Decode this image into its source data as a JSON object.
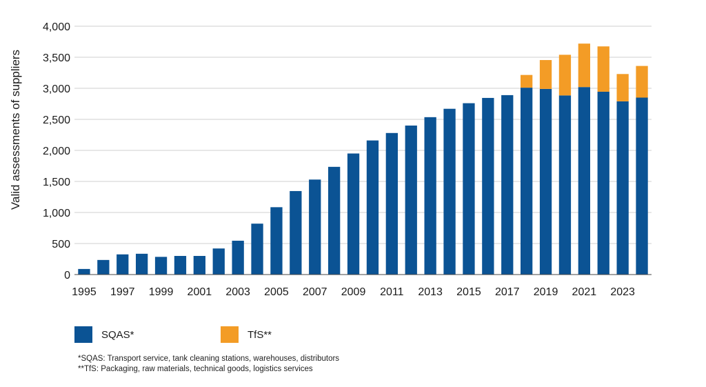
{
  "chart_data": {
    "type": "bar",
    "stacked": true,
    "title": "",
    "xlabel": "",
    "ylabel": "Valid assessments of suppliers",
    "ylim": [
      0,
      4000
    ],
    "yticks": [
      0,
      500,
      1000,
      1500,
      2000,
      2500,
      3000,
      3500,
      4000
    ],
    "ytick_labels": [
      "0",
      "500",
      "1,000",
      "1,500",
      "2,000",
      "2,500",
      "3,000",
      "3,500",
      "4,000"
    ],
    "grid": "horizontal",
    "categories": [
      "1995",
      "1996",
      "1997",
      "1998",
      "1999",
      "2000",
      "2001",
      "2002",
      "2003",
      "2004",
      "2005",
      "2006",
      "2007",
      "2008",
      "2009",
      "2010",
      "2011",
      "2012",
      "2013",
      "2014",
      "2015",
      "2016",
      "2017",
      "2018",
      "2019",
      "2020",
      "2021",
      "2022",
      "2023",
      "2024"
    ],
    "xtick_labels": [
      "1995",
      "1997",
      "1999",
      "2001",
      "2003",
      "2005",
      "2007",
      "2009",
      "2011",
      "2013",
      "2015",
      "2017",
      "2019",
      "2021",
      "2023"
    ],
    "series": [
      {
        "name": "SQAS*",
        "color": "#0b5394",
        "values": [
          90,
          235,
          325,
          335,
          285,
          300,
          300,
          420,
          545,
          820,
          1085,
          1345,
          1530,
          1735,
          1950,
          2160,
          2280,
          2400,
          2535,
          2670,
          2760,
          2845,
          2890,
          3010,
          2990,
          2885,
          3020,
          2945,
          2790,
          2850
        ]
      },
      {
        "name": "TfS**",
        "color": "#f39c26",
        "values": [
          0,
          0,
          0,
          0,
          0,
          0,
          0,
          0,
          0,
          0,
          0,
          0,
          0,
          0,
          0,
          0,
          0,
          0,
          0,
          0,
          0,
          0,
          0,
          205,
          465,
          655,
          700,
          730,
          440,
          510
        ]
      }
    ],
    "legend_position": "bottom-left",
    "footnotes": [
      "*SQAS: Transport service, tank cleaning stations, warehouses, distributors",
      "**TfS: Packaging, raw materials, technical goods, logistics services"
    ]
  }
}
